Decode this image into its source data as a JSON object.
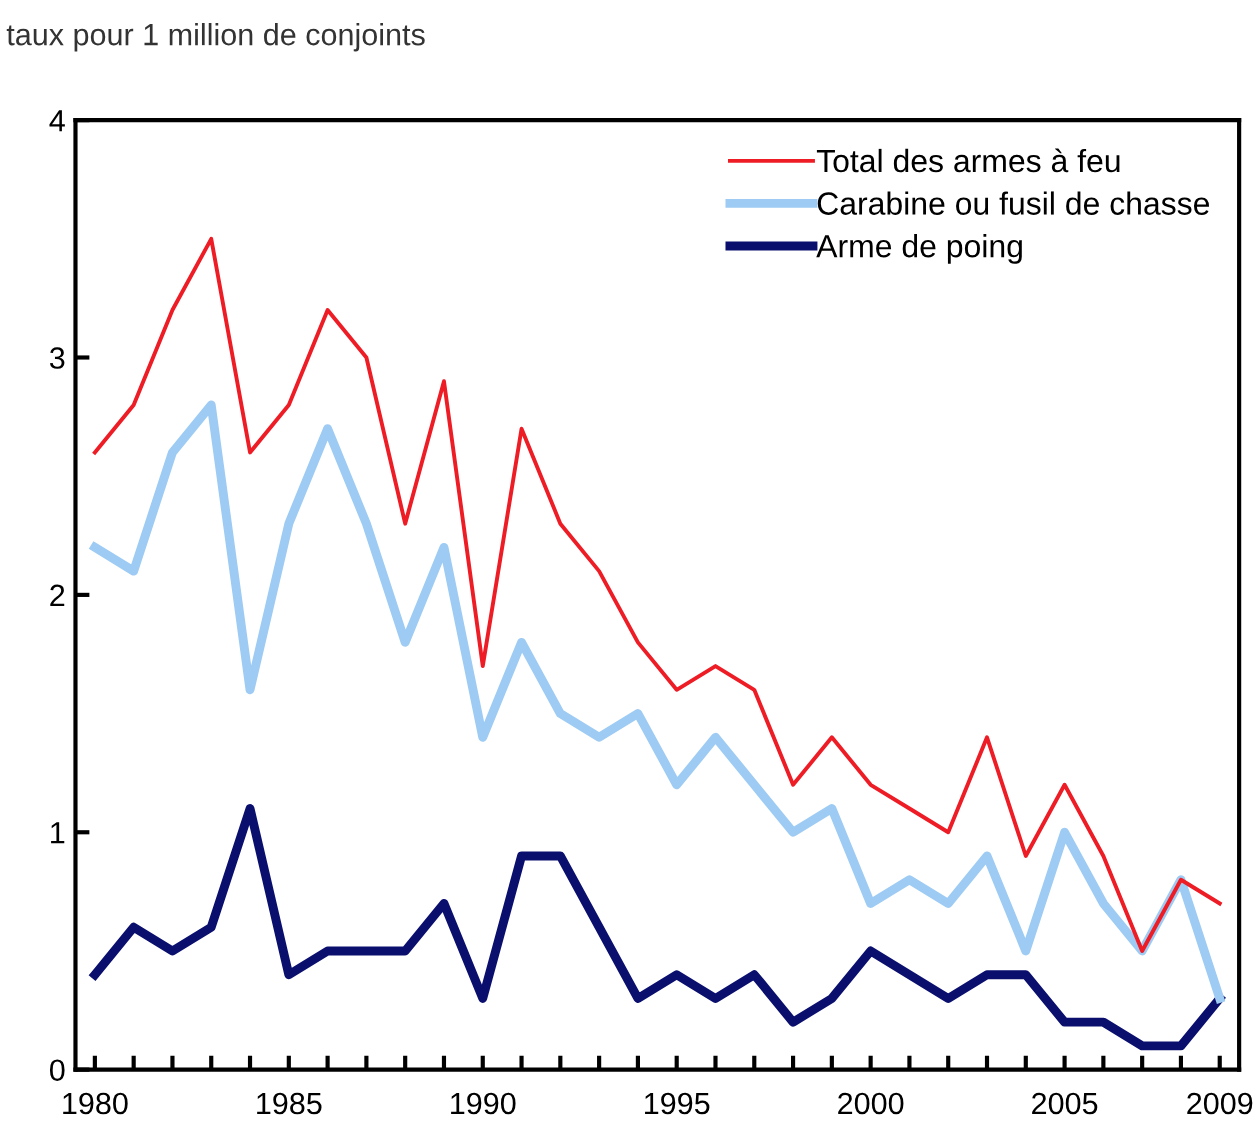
{
  "chart_data": {
    "type": "line",
    "ylabel": "taux pour 1 million de conjoints",
    "x": [
      1980,
      1981,
      1982,
      1983,
      1984,
      1985,
      1986,
      1987,
      1988,
      1989,
      1990,
      1991,
      1992,
      1993,
      1994,
      1995,
      1996,
      1997,
      1998,
      1999,
      2000,
      2001,
      2002,
      2003,
      2004,
      2005,
      2006,
      2007,
      2008,
      2009
    ],
    "series": [
      {
        "name": "Total des armes à feu",
        "color": "#ee1c25",
        "values": [
          2.6,
          2.8,
          3.2,
          3.5,
          2.6,
          2.8,
          3.2,
          3.0,
          2.3,
          2.9,
          1.7,
          2.7,
          2.3,
          2.1,
          1.8,
          1.6,
          1.7,
          1.6,
          1.2,
          1.4,
          1.2,
          1.1,
          1.0,
          1.4,
          0.9,
          1.2,
          0.9,
          0.5,
          0.8,
          0.7
        ]
      },
      {
        "name": "Carabine ou fusil de chasse",
        "color": "#9dcbf3",
        "values": [
          2.2,
          2.1,
          2.6,
          2.8,
          1.6,
          2.3,
          2.7,
          2.3,
          1.8,
          2.2,
          1.4,
          1.8,
          1.5,
          1.4,
          1.5,
          1.2,
          1.4,
          1.2,
          1.0,
          1.1,
          0.7,
          0.8,
          0.7,
          0.9,
          0.5,
          1.0,
          0.7,
          0.5,
          0.8,
          0.3
        ]
      },
      {
        "name": "Arme de poing",
        "color": "#0a0f6e",
        "values": [
          0.4,
          0.6,
          0.5,
          0.6,
          1.1,
          0.4,
          0.5,
          0.5,
          0.5,
          0.7,
          0.3,
          0.9,
          0.9,
          0.6,
          0.3,
          0.4,
          0.3,
          0.4,
          0.2,
          0.3,
          0.5,
          0.4,
          0.3,
          0.4,
          0.4,
          0.2,
          0.2,
          0.1,
          0.1,
          0.3
        ]
      }
    ],
    "xlim": [
      1979.5,
      2009.5
    ],
    "xticks": [
      1980,
      {
        "value": 1981,
        "label": null
      },
      {
        "value": 1982,
        "label": null
      },
      {
        "value": 1983,
        "label": null
      },
      {
        "value": 1984,
        "label": null
      },
      1985,
      {
        "value": 1986,
        "label": null
      },
      {
        "value": 1987,
        "label": null
      },
      {
        "value": 1988,
        "label": null
      },
      {
        "value": 1989,
        "label": null
      },
      1990,
      {
        "value": 1991,
        "label": null
      },
      {
        "value": 1992,
        "label": null
      },
      {
        "value": 1993,
        "label": null
      },
      {
        "value": 1994,
        "label": null
      },
      1995,
      {
        "value": 1996,
        "label": null
      },
      {
        "value": 1997,
        "label": null
      },
      {
        "value": 1998,
        "label": null
      },
      {
        "value": 1999,
        "label": null
      },
      2000,
      {
        "value": 2001,
        "label": null
      },
      {
        "value": 2002,
        "label": null
      },
      {
        "value": 2003,
        "label": null
      },
      {
        "value": 2004,
        "label": null
      },
      2005,
      {
        "value": 2006,
        "label": null
      },
      {
        "value": 2007,
        "label": null
      },
      {
        "value": 2008,
        "label": null
      },
      2009
    ],
    "ylim": [
      0,
      4
    ],
    "yticks": [
      0,
      1,
      2,
      3,
      4
    ],
    "grid": false,
    "legend": "top right",
    "marker": "none",
    "line_style": "solid"
  }
}
